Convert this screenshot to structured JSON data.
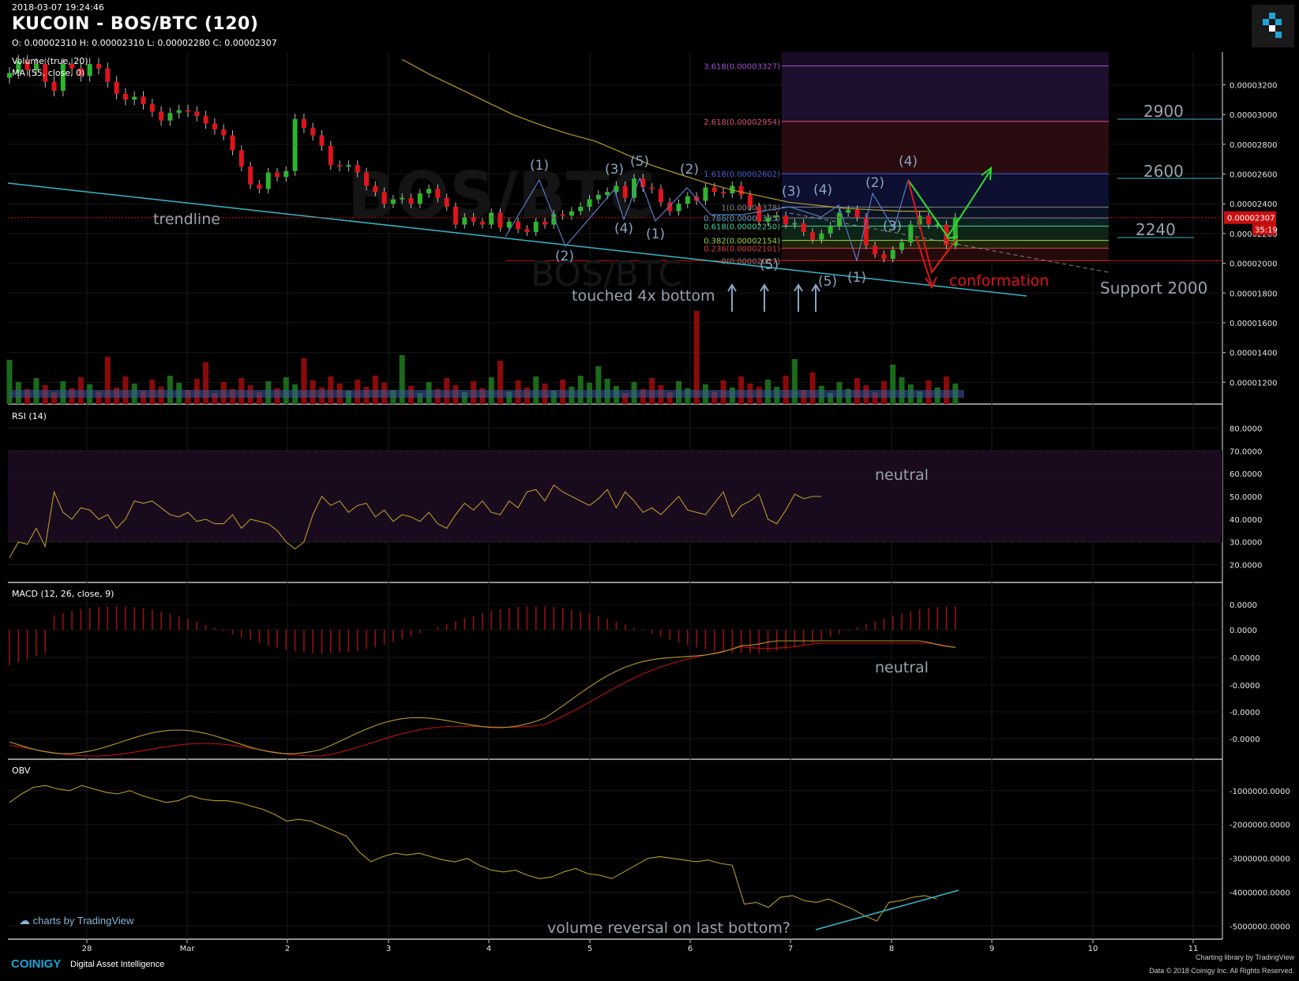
{
  "header": {
    "datetime": "2018-03-07 19:24:46",
    "title": "KUCOIN - BOS/BTC (120)",
    "ohlc": "O: 0.00002310 H: 0.00002310 L: 0.00002280 C: 0.00002307"
  },
  "watermark": "BOS/BTC",
  "colors": {
    "up": "#2db52d",
    "down": "#e0141c",
    "ma": "#b59b2b",
    "trend": "#35b7c7",
    "annotation": "#8aa4c2",
    "label_text": "#98a2ad",
    "arrow_green": "#2de02d",
    "arrow_red": "#e0141c",
    "macd_signal": "#c01010",
    "rsi_band": "#1a0a1e"
  },
  "x_axis": {
    "ticks": [
      "28",
      "Mar",
      "2",
      "3",
      "4",
      "5",
      "6",
      "7",
      "8",
      "9",
      "10",
      "11"
    ]
  },
  "price_panel": {
    "legend": [
      "Volume (true, 20)",
      "MA (55, close, 0)"
    ],
    "y_ticks": [
      "0.00003200",
      "0.00003000",
      "0.00002800",
      "0.00002600",
      "0.00002400",
      "0.00002200",
      "0.00002000",
      "0.00001800",
      "0.00001600",
      "0.00001400",
      "0.00001200"
    ],
    "current_price": "0.00002307",
    "countdown": "35:19",
    "fib_levels": [
      {
        "ratio": "3.618",
        "label": "3.618(0.00003327)",
        "color": "#a84cd6"
      },
      {
        "ratio": "2.618",
        "label": "2.618(0.00002954)",
        "color": "#e0507a"
      },
      {
        "ratio": "1.618",
        "label": "1.618(0.00002602)",
        "color": "#4a5ad6"
      },
      {
        "ratio": "1",
        "label": "1(0.00002378)",
        "color": "#888888"
      },
      {
        "ratio": "0.786",
        "label": "0.786(0.00002305)",
        "color": "#4ab0d6"
      },
      {
        "ratio": "0.618",
        "label": "0.618(0.00002250)",
        "color": "#3ed6a0"
      },
      {
        "ratio": "0.382",
        "label": "0.382(0.00002154)",
        "color": "#a0d63e"
      },
      {
        "ratio": "0.236",
        "label": "0.236(0.00002101)",
        "color": "#d63e3e"
      },
      {
        "ratio": "0",
        "label": "0(0.00002017)",
        "color": "#888888"
      }
    ],
    "target_labels": [
      "2900",
      "2600",
      "2240",
      "Support 2000"
    ],
    "annotations": {
      "trendline": "trendline",
      "touched": "touched 4x bottom",
      "confirmation": "conformation"
    },
    "wave_labels": [
      "(1)",
      "(2)",
      "(3)",
      "(4)",
      "(5)",
      "(1)",
      "(2)",
      "(3)",
      "(4)",
      "(5)",
      "(1)",
      "(2)",
      "(3)",
      "(4)",
      "(5)"
    ]
  },
  "rsi_panel": {
    "legend": "RSI (14)",
    "y_ticks": [
      "80.0000",
      "70.0000",
      "60.0000",
      "50.0000",
      "40.0000",
      "30.0000",
      "20.0000"
    ],
    "note": "neutral"
  },
  "macd_panel": {
    "legend": "MACD (12, 26, close, 9)",
    "y_ticks": [
      "0.0000",
      "0.0000",
      "-0.0000",
      "-0.0000",
      "-0.0000",
      "-0.0000"
    ],
    "note": "neutral"
  },
  "obv_panel": {
    "legend": "OBV",
    "y_ticks": [
      "-1000000.0000",
      "-2000000.0000",
      "-3000000.0000",
      "-4000000.0000",
      "-5000000.0000"
    ],
    "note": "volume reversal on last bottom?"
  },
  "credits": {
    "tradingview": "charts by TradingView",
    "brand": "COINIGY",
    "tagline": "Digital Asset Intelligence",
    "right1": "Charting library by  TradingView",
    "right2": "Data © 2018  Coinigy Inc. All Rights Reserved."
  },
  "chart_data": {
    "type": "candlestick",
    "title": "KUCOIN - BOS/BTC (120)",
    "exchange": "KUCOIN",
    "pair": "BOS/BTC",
    "interval_minutes": 120,
    "ylim": [
      1.17e-05,
      3.42e-05
    ],
    "closes": [
      3.28e-05,
      3.36e-05,
      3.3e-05,
      3.34e-05,
      3.22e-05,
      3.16e-05,
      3.34e-05,
      3.31e-05,
      3.26e-05,
      3.34e-05,
      3.31e-05,
      3.22e-05,
      3.14e-05,
      3.1e-05,
      3.12e-05,
      3.07e-05,
      3.02e-05,
      2.96e-05,
      3.01e-05,
      3.03e-05,
      3.02e-05,
      2.99e-05,
      2.94e-05,
      2.9e-05,
      2.86e-05,
      2.76e-05,
      2.65e-05,
      2.53e-05,
      2.5e-05,
      2.61e-05,
      2.58e-05,
      2.62e-05,
      2.97e-05,
      2.91e-05,
      2.86e-05,
      2.79e-05,
      2.66e-05,
      2.65e-05,
      2.66e-05,
      2.61e-05,
      2.52e-05,
      2.48e-05,
      2.4e-05,
      2.43e-05,
      2.44e-05,
      2.4e-05,
      2.47e-05,
      2.5e-05,
      2.44e-05,
      2.38e-05,
      2.26e-05,
      2.31e-05,
      2.28e-05,
      2.26e-05,
      2.34e-05,
      2.24e-05,
      2.28e-05,
      2.23e-05,
      2.21e-05,
      2.28e-05,
      2.26e-05,
      2.33e-05,
      2.32e-05,
      2.35e-05,
      2.38e-05,
      2.43e-05,
      2.46e-05,
      2.48e-05,
      2.52e-05,
      2.44e-05,
      2.57e-05,
      2.51e-05,
      2.5e-05,
      2.41e-05,
      2.35e-05,
      2.4e-05,
      2.45e-05,
      2.42e-05,
      2.51e-05,
      2.48e-05,
      2.47e-05,
      2.52e-05,
      2.46e-05,
      2.38e-05,
      2.28e-05,
      2.31e-05,
      2.32e-05,
      2.26e-05,
      2.27e-05,
      2.21e-05,
      2.16e-05,
      2.2e-05,
      2.25e-05,
      2.34e-05,
      2.36e-05,
      2.31e-05,
      2.12e-05,
      2.06e-05,
      2.03e-05,
      2.09e-05,
      2.14e-05,
      2.26e-05,
      2.32e-05,
      2.26e-05,
      2.26e-05,
      2.12e-05,
      2.31e-05
    ],
    "moving_average_55": {
      "start_index": 44,
      "values": [
        3.37e-05,
        3.27e-05,
        3.18e-05,
        3.09e-05,
        3e-05,
        2.93e-05,
        2.87e-05,
        2.82e-05,
        2.74e-05,
        2.66e-05,
        2.6e-05,
        2.54e-05,
        2.49e-05,
        2.45e-05,
        2.41e-05,
        2.39e-05,
        2.37e-05,
        2.36e-05,
        2.35e-05,
        2.35e-05
      ]
    },
    "fibonacci": {
      "levels": [
        3.618,
        2.618,
        1.618,
        1,
        0.786,
        0.618,
        0.382,
        0.236,
        0
      ],
      "prices": [
        3.327e-05,
        2.954e-05,
        2.602e-05,
        2.378e-05,
        2.305e-05,
        2.25e-05,
        2.154e-05,
        2.101e-05,
        2.017e-05
      ]
    },
    "current_price": 2.307e-05,
    "rsi": {
      "period": 14,
      "ylim": [
        15,
        85
      ],
      "bands": [
        30,
        70
      ],
      "values": [
        23,
        30,
        29,
        36,
        28,
        52,
        43,
        40,
        45,
        44,
        40,
        42,
        36,
        40,
        48,
        47,
        48,
        45,
        42,
        41,
        43,
        39,
        40,
        38,
        38,
        42,
        36,
        40,
        39,
        38,
        35,
        30,
        27,
        30,
        42,
        50,
        46,
        48,
        43,
        46,
        47,
        41,
        44,
        39,
        42,
        41,
        39,
        43,
        38,
        36,
        42,
        47,
        44,
        48,
        43,
        42,
        48,
        45,
        52,
        53,
        48,
        55,
        52,
        50,
        48,
        46,
        49,
        53,
        45,
        52,
        48,
        43,
        45,
        42,
        46,
        50,
        44,
        43,
        42,
        47,
        52,
        41,
        46,
        48,
        51,
        40,
        38,
        44,
        51,
        49,
        50,
        50
      ]
    },
    "macd": {
      "fast": 12,
      "slow": 26,
      "signal": 9
    },
    "obv": {
      "ylim": [
        -5200000,
        -400000
      ],
      "values": [
        -1350000,
        -1100000,
        -900000,
        -850000,
        -950000,
        -1000000,
        -850000,
        -950000,
        -1050000,
        -1100000,
        -1000000,
        -1150000,
        -1250000,
        -1350000,
        -1300000,
        -1150000,
        -1250000,
        -1300000,
        -1300000,
        -1350000,
        -1450000,
        -1550000,
        -1700000,
        -1900000,
        -1850000,
        -1900000,
        -2050000,
        -2200000,
        -2350000,
        -2800000,
        -3100000,
        -2950000,
        -2850000,
        -2900000,
        -2850000,
        -2950000,
        -3050000,
        -3100000,
        -3000000,
        -3200000,
        -3350000,
        -3400000,
        -3350000,
        -3500000,
        -3600000,
        -3550000,
        -3400000,
        -3300000,
        -3450000,
        -3500000,
        -3600000,
        -3400000,
        -3200000,
        -3000000,
        -2950000,
        -3000000,
        -3050000,
        -3100000,
        -3050000,
        -3150000,
        -3200000,
        -4350000,
        -4300000,
        -4450000,
        -4150000,
        -4100000,
        -4250000,
        -4300000,
        -4200000,
        -4350000,
        -4500000,
        -4700000,
        -4850000,
        -4300000,
        -4250000,
        -4150000,
        -4100000,
        -4200000
      ]
    }
  }
}
